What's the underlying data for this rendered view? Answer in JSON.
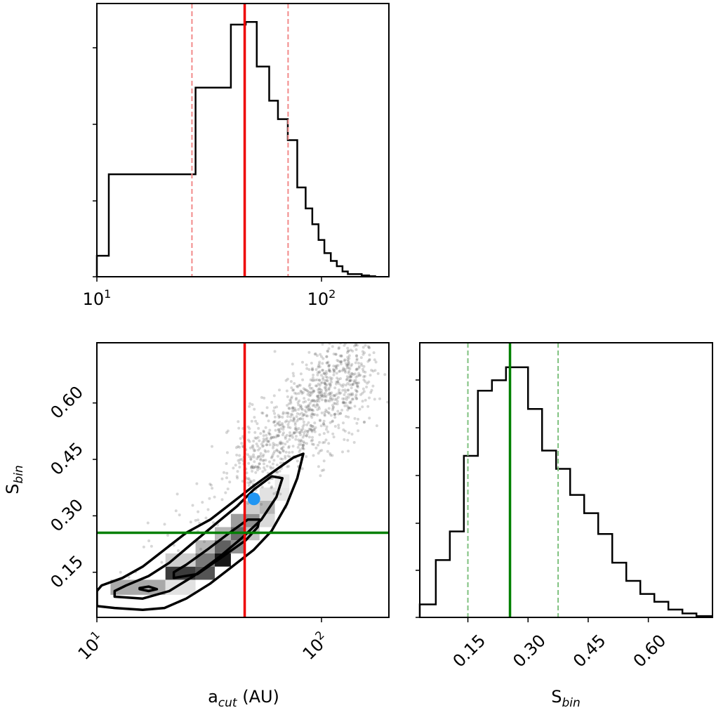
{
  "chart_data": [
    {
      "type": "histogram",
      "panel": "marginal-a-cut",
      "xscale": "log",
      "xlim": [
        10,
        200
      ],
      "x_ticks": [
        {
          "base": "10",
          "exp": "1",
          "value": 10
        },
        {
          "base": "10",
          "exp": "2",
          "value": 100
        }
      ],
      "bin_edges": [
        10,
        11.3,
        20.2,
        27.5,
        39.5,
        46,
        51.5,
        58.5,
        64,
        70.8,
        78,
        85,
        91,
        97,
        103,
        110,
        117,
        124,
        131,
        140,
        151,
        163,
        175
      ],
      "counts": [
        0.08,
        0.39,
        0.39,
        0.72,
        0.96,
        0.97,
        0.8,
        0.67,
        0.6,
        0.52,
        0.34,
        0.26,
        0.2,
        0.14,
        0.09,
        0.06,
        0.04,
        0.02,
        0.01,
        0.01,
        0.005,
        0.002
      ],
      "median": 45.5,
      "quantiles": [
        26.5,
        71
      ]
    },
    {
      "type": "scatter-contour",
      "panel": "joint",
      "xscale": "log",
      "xlim": [
        10,
        200
      ],
      "ylim": [
        0.03,
        0.76
      ],
      "xlabel_base": "a",
      "xlabel_sub": "cut",
      "xlabel_tail": " (AU)",
      "ylabel_base": "S",
      "ylabel_sub": "bin",
      "x_ticks": [
        {
          "base": "10",
          "exp": "1",
          "value": 10
        },
        {
          "base": "10",
          "exp": "2",
          "value": 100
        }
      ],
      "y_ticks": [
        "0.15",
        "0.30",
        "0.45",
        "0.60"
      ],
      "y_tick_values": [
        0.15,
        0.3,
        0.45,
        0.6
      ],
      "truth_x": 45.5,
      "truth_y": 0.255,
      "marker": {
        "x": 50,
        "y": 0.345
      },
      "density_cells": [
        {
          "x0": 11.5,
          "x1": 20.2,
          "y0": 0.09,
          "y1": 0.13,
          "v": 0.35
        },
        {
          "x0": 20.2,
          "x1": 27.5,
          "y0": 0.09,
          "y1": 0.13,
          "v": 0.12
        },
        {
          "x0": 20.2,
          "x1": 27.5,
          "y0": 0.13,
          "y1": 0.165,
          "v": 0.8
        },
        {
          "x0": 20.2,
          "x1": 27.5,
          "y0": 0.165,
          "y1": 0.2,
          "v": 0.2
        },
        {
          "x0": 27.5,
          "x1": 33.5,
          "y0": 0.13,
          "y1": 0.165,
          "v": 0.7
        },
        {
          "x0": 27.5,
          "x1": 33.5,
          "y0": 0.165,
          "y1": 0.2,
          "v": 0.55
        },
        {
          "x0": 27.5,
          "x1": 33.5,
          "y0": 0.2,
          "y1": 0.235,
          "v": 0.3
        },
        {
          "x0": 33.5,
          "x1": 39.5,
          "y0": 0.165,
          "y1": 0.2,
          "v": 0.95
        },
        {
          "x0": 33.5,
          "x1": 39.5,
          "y0": 0.2,
          "y1": 0.235,
          "v": 0.65
        },
        {
          "x0": 33.5,
          "x1": 39.5,
          "y0": 0.235,
          "y1": 0.27,
          "v": 0.3
        },
        {
          "x0": 39.5,
          "x1": 46,
          "y0": 0.2,
          "y1": 0.235,
          "v": 0.45
        },
        {
          "x0": 39.5,
          "x1": 46,
          "y0": 0.235,
          "y1": 0.27,
          "v": 0.6
        },
        {
          "x0": 39.5,
          "x1": 46,
          "y0": 0.27,
          "y1": 0.305,
          "v": 0.4
        },
        {
          "x0": 46,
          "x1": 53,
          "y0": 0.235,
          "y1": 0.27,
          "v": 0.25
        },
        {
          "x0": 46,
          "x1": 53,
          "y0": 0.27,
          "y1": 0.305,
          "v": 0.45
        },
        {
          "x0": 46,
          "x1": 53,
          "y0": 0.305,
          "y1": 0.34,
          "v": 0.2
        },
        {
          "x0": 53,
          "x1": 62,
          "y0": 0.27,
          "y1": 0.305,
          "v": 0.15
        },
        {
          "x0": 53,
          "x1": 62,
          "y0": 0.305,
          "y1": 0.34,
          "v": 0.3
        },
        {
          "x0": 53,
          "x1": 62,
          "y0": 0.34,
          "y1": 0.375,
          "v": 0.12
        },
        {
          "x0": 62,
          "x1": 72,
          "y0": 0.34,
          "y1": 0.375,
          "v": 0.1
        },
        {
          "x0": 62,
          "x1": 72,
          "y0": 0.375,
          "y1": 0.41,
          "v": 0.08
        }
      ],
      "contours": [
        [
          [
            10,
            0.06
          ],
          [
            12,
            0.055
          ],
          [
            16,
            0.05
          ],
          [
            20,
            0.055
          ],
          [
            25,
            0.08
          ],
          [
            32,
            0.12
          ],
          [
            40,
            0.165
          ],
          [
            50,
            0.21
          ],
          [
            60,
            0.26
          ],
          [
            70,
            0.33
          ],
          [
            78,
            0.4
          ],
          [
            83,
            0.465
          ],
          [
            75,
            0.455
          ],
          [
            62,
            0.42
          ],
          [
            50,
            0.38
          ],
          [
            40,
            0.335
          ],
          [
            32,
            0.29
          ],
          [
            25,
            0.255
          ],
          [
            20,
            0.21
          ],
          [
            16,
            0.165
          ],
          [
            13,
            0.135
          ],
          [
            10.5,
            0.115
          ],
          [
            10,
            0.1
          ]
        ],
        [
          [
            12,
            0.085
          ],
          [
            16,
            0.08
          ],
          [
            21,
            0.1
          ],
          [
            27,
            0.14
          ],
          [
            35,
            0.19
          ],
          [
            44,
            0.24
          ],
          [
            54,
            0.29
          ],
          [
            63,
            0.35
          ],
          [
            67,
            0.4
          ],
          [
            60,
            0.405
          ],
          [
            50,
            0.37
          ],
          [
            42,
            0.325
          ],
          [
            34,
            0.28
          ],
          [
            27,
            0.23
          ],
          [
            21,
            0.175
          ],
          [
            17,
            0.14
          ],
          [
            13.5,
            0.115
          ],
          [
            12,
            0.1
          ]
        ],
        [
          [
            22,
            0.135
          ],
          [
            28,
            0.145
          ],
          [
            36,
            0.19
          ],
          [
            46,
            0.235
          ],
          [
            52,
            0.27
          ],
          [
            53,
            0.29
          ],
          [
            47,
            0.29
          ],
          [
            39,
            0.255
          ],
          [
            31,
            0.21
          ],
          [
            25,
            0.17
          ],
          [
            22,
            0.15
          ]
        ],
        [
          [
            15.5,
            0.105
          ],
          [
            17,
            0.1
          ],
          [
            18.5,
            0.105
          ],
          [
            17,
            0.112
          ],
          [
            15.5,
            0.108
          ]
        ]
      ],
      "scatter_cloud": {
        "ridge_start": [
          10,
          0.08
        ],
        "ridge_end": [
          150,
          0.7
        ],
        "count": 1400
      }
    },
    {
      "type": "histogram",
      "panel": "marginal-s-bin",
      "xlim": [
        0.03,
        0.76
      ],
      "xlabel_base": "S",
      "xlabel_sub": "bin",
      "x_ticks": [
        "0.15",
        "0.30",
        "0.45",
        "0.60"
      ],
      "x_tick_values": [
        0.15,
        0.3,
        0.45,
        0.6
      ],
      "bin_edges": [
        0.03,
        0.07,
        0.105,
        0.14,
        0.175,
        0.21,
        0.245,
        0.265,
        0.3,
        0.335,
        0.37,
        0.405,
        0.44,
        0.475,
        0.51,
        0.545,
        0.58,
        0.615,
        0.65,
        0.685,
        0.72,
        0.76
      ],
      "counts": [
        0.05,
        0.22,
        0.33,
        0.62,
        0.87,
        0.91,
        0.96,
        0.96,
        0.8,
        0.64,
        0.57,
        0.47,
        0.4,
        0.32,
        0.21,
        0.14,
        0.09,
        0.06,
        0.03,
        0.015,
        0.005
      ],
      "median": 0.255,
      "quantiles": [
        0.15,
        0.375
      ]
    }
  ],
  "colors": {
    "truth_x": "#ee0000",
    "truth_x_quantile": "#f28a8a",
    "truth_y": "#008000",
    "truth_y_quantile": "#7fc17f",
    "marker": "#2196f3",
    "points": "#4a4a4a"
  }
}
